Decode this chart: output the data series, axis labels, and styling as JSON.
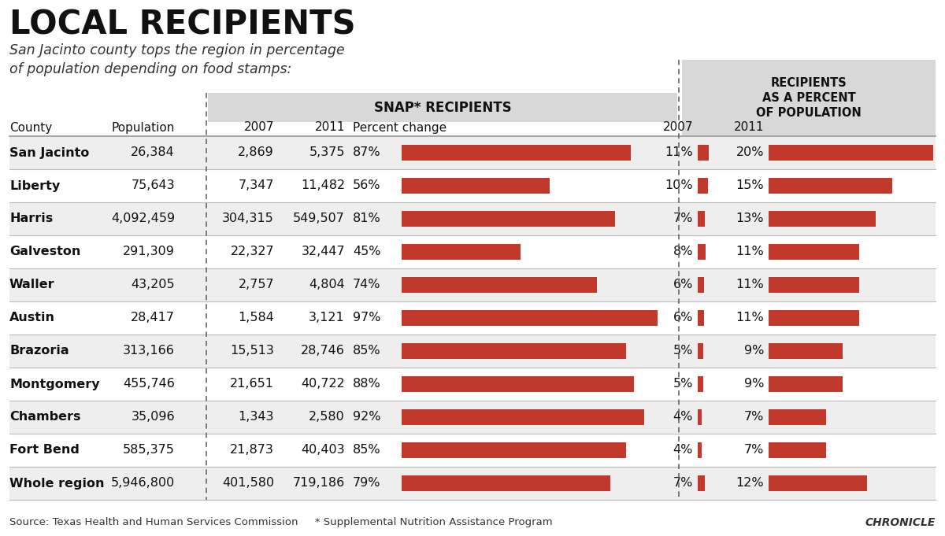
{
  "title": "LOCAL RECIPIENTS",
  "subtitle": "San Jacinto county tops the region in percentage\nof population depending on food stamps:",
  "source": "Source: Texas Health and Human Services Commission     * Supplemental Nutrition Assistance Program",
  "chronicle": "CHRONICLE",
  "rows": [
    {
      "county": "San Jacinto",
      "population": "26,384",
      "snap2007": "2,869",
      "snap2011": "5,375",
      "pct_change": 87,
      "pct_change_str": "87%",
      "pct2007": 11,
      "pct2007_str": "11%",
      "pct2011": 20,
      "pct2011_str": "20%"
    },
    {
      "county": "Liberty",
      "population": "75,643",
      "snap2007": "7,347",
      "snap2011": "11,482",
      "pct_change": 56,
      "pct_change_str": "56%",
      "pct2007": 10,
      "pct2007_str": "10%",
      "pct2011": 15,
      "pct2011_str": "15%"
    },
    {
      "county": "Harris",
      "population": "4,092,459",
      "snap2007": "304,315",
      "snap2011": "549,507",
      "pct_change": 81,
      "pct_change_str": "81%",
      "pct2007": 7,
      "pct2007_str": "7%",
      "pct2011": 13,
      "pct2011_str": "13%"
    },
    {
      "county": "Galveston",
      "population": "291,309",
      "snap2007": "22,327",
      "snap2011": "32,447",
      "pct_change": 45,
      "pct_change_str": "45%",
      "pct2007": 8,
      "pct2007_str": "8%",
      "pct2011": 11,
      "pct2011_str": "11%"
    },
    {
      "county": "Waller",
      "population": "43,205",
      "snap2007": "2,757",
      "snap2011": "4,804",
      "pct_change": 74,
      "pct_change_str": "74%",
      "pct2007": 6,
      "pct2007_str": "6%",
      "pct2011": 11,
      "pct2011_str": "11%"
    },
    {
      "county": "Austin",
      "population": "28,417",
      "snap2007": "1,584",
      "snap2011": "3,121",
      "pct_change": 97,
      "pct_change_str": "97%",
      "pct2007": 6,
      "pct2007_str": "6%",
      "pct2011": 11,
      "pct2011_str": "11%"
    },
    {
      "county": "Brazoria",
      "population": "313,166",
      "snap2007": "15,513",
      "snap2011": "28,746",
      "pct_change": 85,
      "pct_change_str": "85%",
      "pct2007": 5,
      "pct2007_str": "5%",
      "pct2011": 9,
      "pct2011_str": "9%"
    },
    {
      "county": "Montgomery",
      "population": "455,746",
      "snap2007": "21,651",
      "snap2011": "40,722",
      "pct_change": 88,
      "pct_change_str": "88%",
      "pct2007": 5,
      "pct2007_str": "5%",
      "pct2011": 9,
      "pct2011_str": "9%"
    },
    {
      "county": "Chambers",
      "population": "35,096",
      "snap2007": "1,343",
      "snap2011": "2,580",
      "pct_change": 92,
      "pct_change_str": "92%",
      "pct2007": 4,
      "pct2007_str": "4%",
      "pct2011": 7,
      "pct2011_str": "7%"
    },
    {
      "county": "Fort Bend",
      "population": "585,375",
      "snap2007": "21,873",
      "snap2011": "40,403",
      "pct_change": 85,
      "pct_change_str": "85%",
      "pct2007": 4,
      "pct2007_str": "4%",
      "pct2011": 7,
      "pct2011_str": "7%"
    },
    {
      "county": "Whole region",
      "population": "5,946,800",
      "snap2007": "401,580",
      "snap2011": "719,186",
      "pct_change": 79,
      "pct_change_str": "79%",
      "pct2007": 7,
      "pct2007_str": "7%",
      "pct2011": 12,
      "pct2011_str": "12%"
    }
  ],
  "bar_color": "#c0392b",
  "bg_color": "#ffffff",
  "header_bg": "#d8d8d8",
  "stripe_even": "#eeeeee",
  "stripe_odd": "#ffffff",
  "text_color": "#111111",
  "dashed_color": "#666666"
}
